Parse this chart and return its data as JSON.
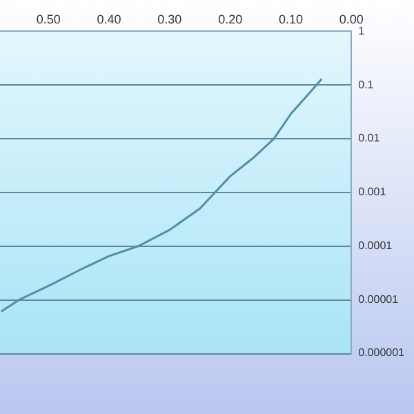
{
  "chart_data": {
    "type": "line",
    "log": "y",
    "grid": "y",
    "marker": "none",
    "line_style": "solid",
    "legend": false,
    "x": [
      0.578,
      0.548,
      0.5,
      0.45,
      0.4,
      0.351,
      0.3,
      0.25,
      0.225,
      0.2,
      0.162,
      0.128,
      0.099,
      0.075,
      0.049
    ],
    "series": [
      {
        "color": "#4f8fa8",
        "values": [
          6e-06,
          1e-05,
          1.8e-05,
          3.5e-05,
          6.5e-05,
          0.0001,
          0.0002,
          0.0005,
          0.001,
          0.002,
          0.0044,
          0.01,
          0.03,
          0.06,
          0.13
        ]
      }
    ],
    "xlim": [
      0.58,
      0
    ],
    "xticks": [
      {
        "value": 0.5,
        "label": "0.50"
      },
      {
        "value": 0.4,
        "label": "0.40"
      },
      {
        "value": 0.3,
        "label": "0.30"
      },
      {
        "value": 0.2,
        "label": "0.20"
      },
      {
        "value": 0.1,
        "label": "0.10"
      },
      {
        "value": 0,
        "label": "0.00"
      }
    ],
    "ylim": [
      1e-06,
      1
    ],
    "yticks": [
      1,
      0.1,
      0.01,
      0.001,
      0.0001,
      {
        "value": 1e-05,
        "label": "0.00001"
      },
      {
        "value": 1e-06,
        "label": "0.000001"
      }
    ]
  }
}
